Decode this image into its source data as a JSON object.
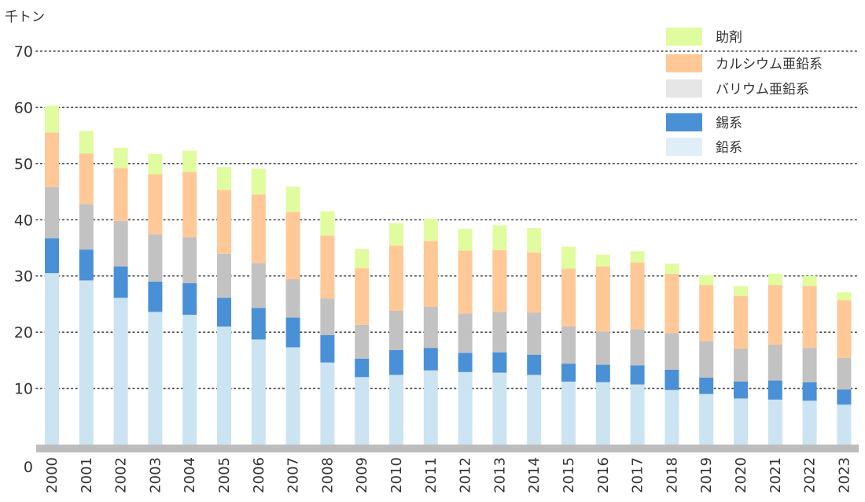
{
  "chart_data": {
    "type": "bar",
    "stacked": true,
    "unit_label": "千トン",
    "title": "",
    "xlabel": "",
    "ylabel": "",
    "ylim": [
      0,
      70
    ],
    "yticks": [
      0,
      10,
      20,
      30,
      40,
      50,
      60,
      70
    ],
    "grid": true,
    "legend_position": "top-right",
    "categories": [
      "2000",
      "2001",
      "2002",
      "2003",
      "2004",
      "2005",
      "2006",
      "2007",
      "2008",
      "2009",
      "2010",
      "2011",
      "2012",
      "2013",
      "2014",
      "2015",
      "2016",
      "2017",
      "2018",
      "2019",
      "2020",
      "2021",
      "2022",
      "2023"
    ],
    "series": [
      {
        "name": "鉛系",
        "color": "#cce3f2",
        "values": [
          30.5,
          29.2,
          26.1,
          23.6,
          23.1,
          21.0,
          18.7,
          17.3,
          14.6,
          12.0,
          12.4,
          13.2,
          12.9,
          12.8,
          12.4,
          11.2,
          11.1,
          10.7,
          9.7,
          9.0,
          8.2,
          8.0,
          7.8,
          7.1
        ]
      },
      {
        "name": "錫系",
        "color": "#4a90d6",
        "values": [
          6.2,
          5.5,
          5.6,
          5.4,
          5.6,
          5.1,
          5.6,
          5.3,
          4.9,
          3.3,
          4.4,
          4.0,
          3.4,
          3.6,
          3.6,
          3.2,
          3.1,
          3.4,
          3.6,
          2.9,
          3.0,
          3.4,
          3.3,
          2.7
        ]
      },
      {
        "name": "バリウム亜鉛系",
        "color": "#c2c2c2",
        "values": [
          9.1,
          8.1,
          8.1,
          8.4,
          8.2,
          7.8,
          8.0,
          6.8,
          6.5,
          6.0,
          7.0,
          7.3,
          7.0,
          7.2,
          7.5,
          6.6,
          5.9,
          6.4,
          6.5,
          6.5,
          5.9,
          6.4,
          6.1,
          5.6
        ]
      },
      {
        "name": "カルシウム亜鉛系",
        "color": "#ffc896",
        "values": [
          9.7,
          9.0,
          9.4,
          10.7,
          11.6,
          11.4,
          12.2,
          12.0,
          11.2,
          10.1,
          11.6,
          11.7,
          11.2,
          11.0,
          10.7,
          10.3,
          11.6,
          11.9,
          10.6,
          10.0,
          9.4,
          10.6,
          11.0,
          10.3
        ]
      },
      {
        "name": "助剤",
        "color": "#e0fc9e",
        "values": [
          4.8,
          4.0,
          3.6,
          3.6,
          3.8,
          4.1,
          4.6,
          4.5,
          4.3,
          3.4,
          4.0,
          4.0,
          3.9,
          4.4,
          4.3,
          3.9,
          2.1,
          2.0,
          1.8,
          1.7,
          1.7,
          2.0,
          1.8,
          1.4
        ]
      }
    ],
    "legend_order": [
      "助剤",
      "カルシウム亜鉛系",
      "バリウム亜鉛系",
      "錫系",
      "鉛系"
    ]
  }
}
